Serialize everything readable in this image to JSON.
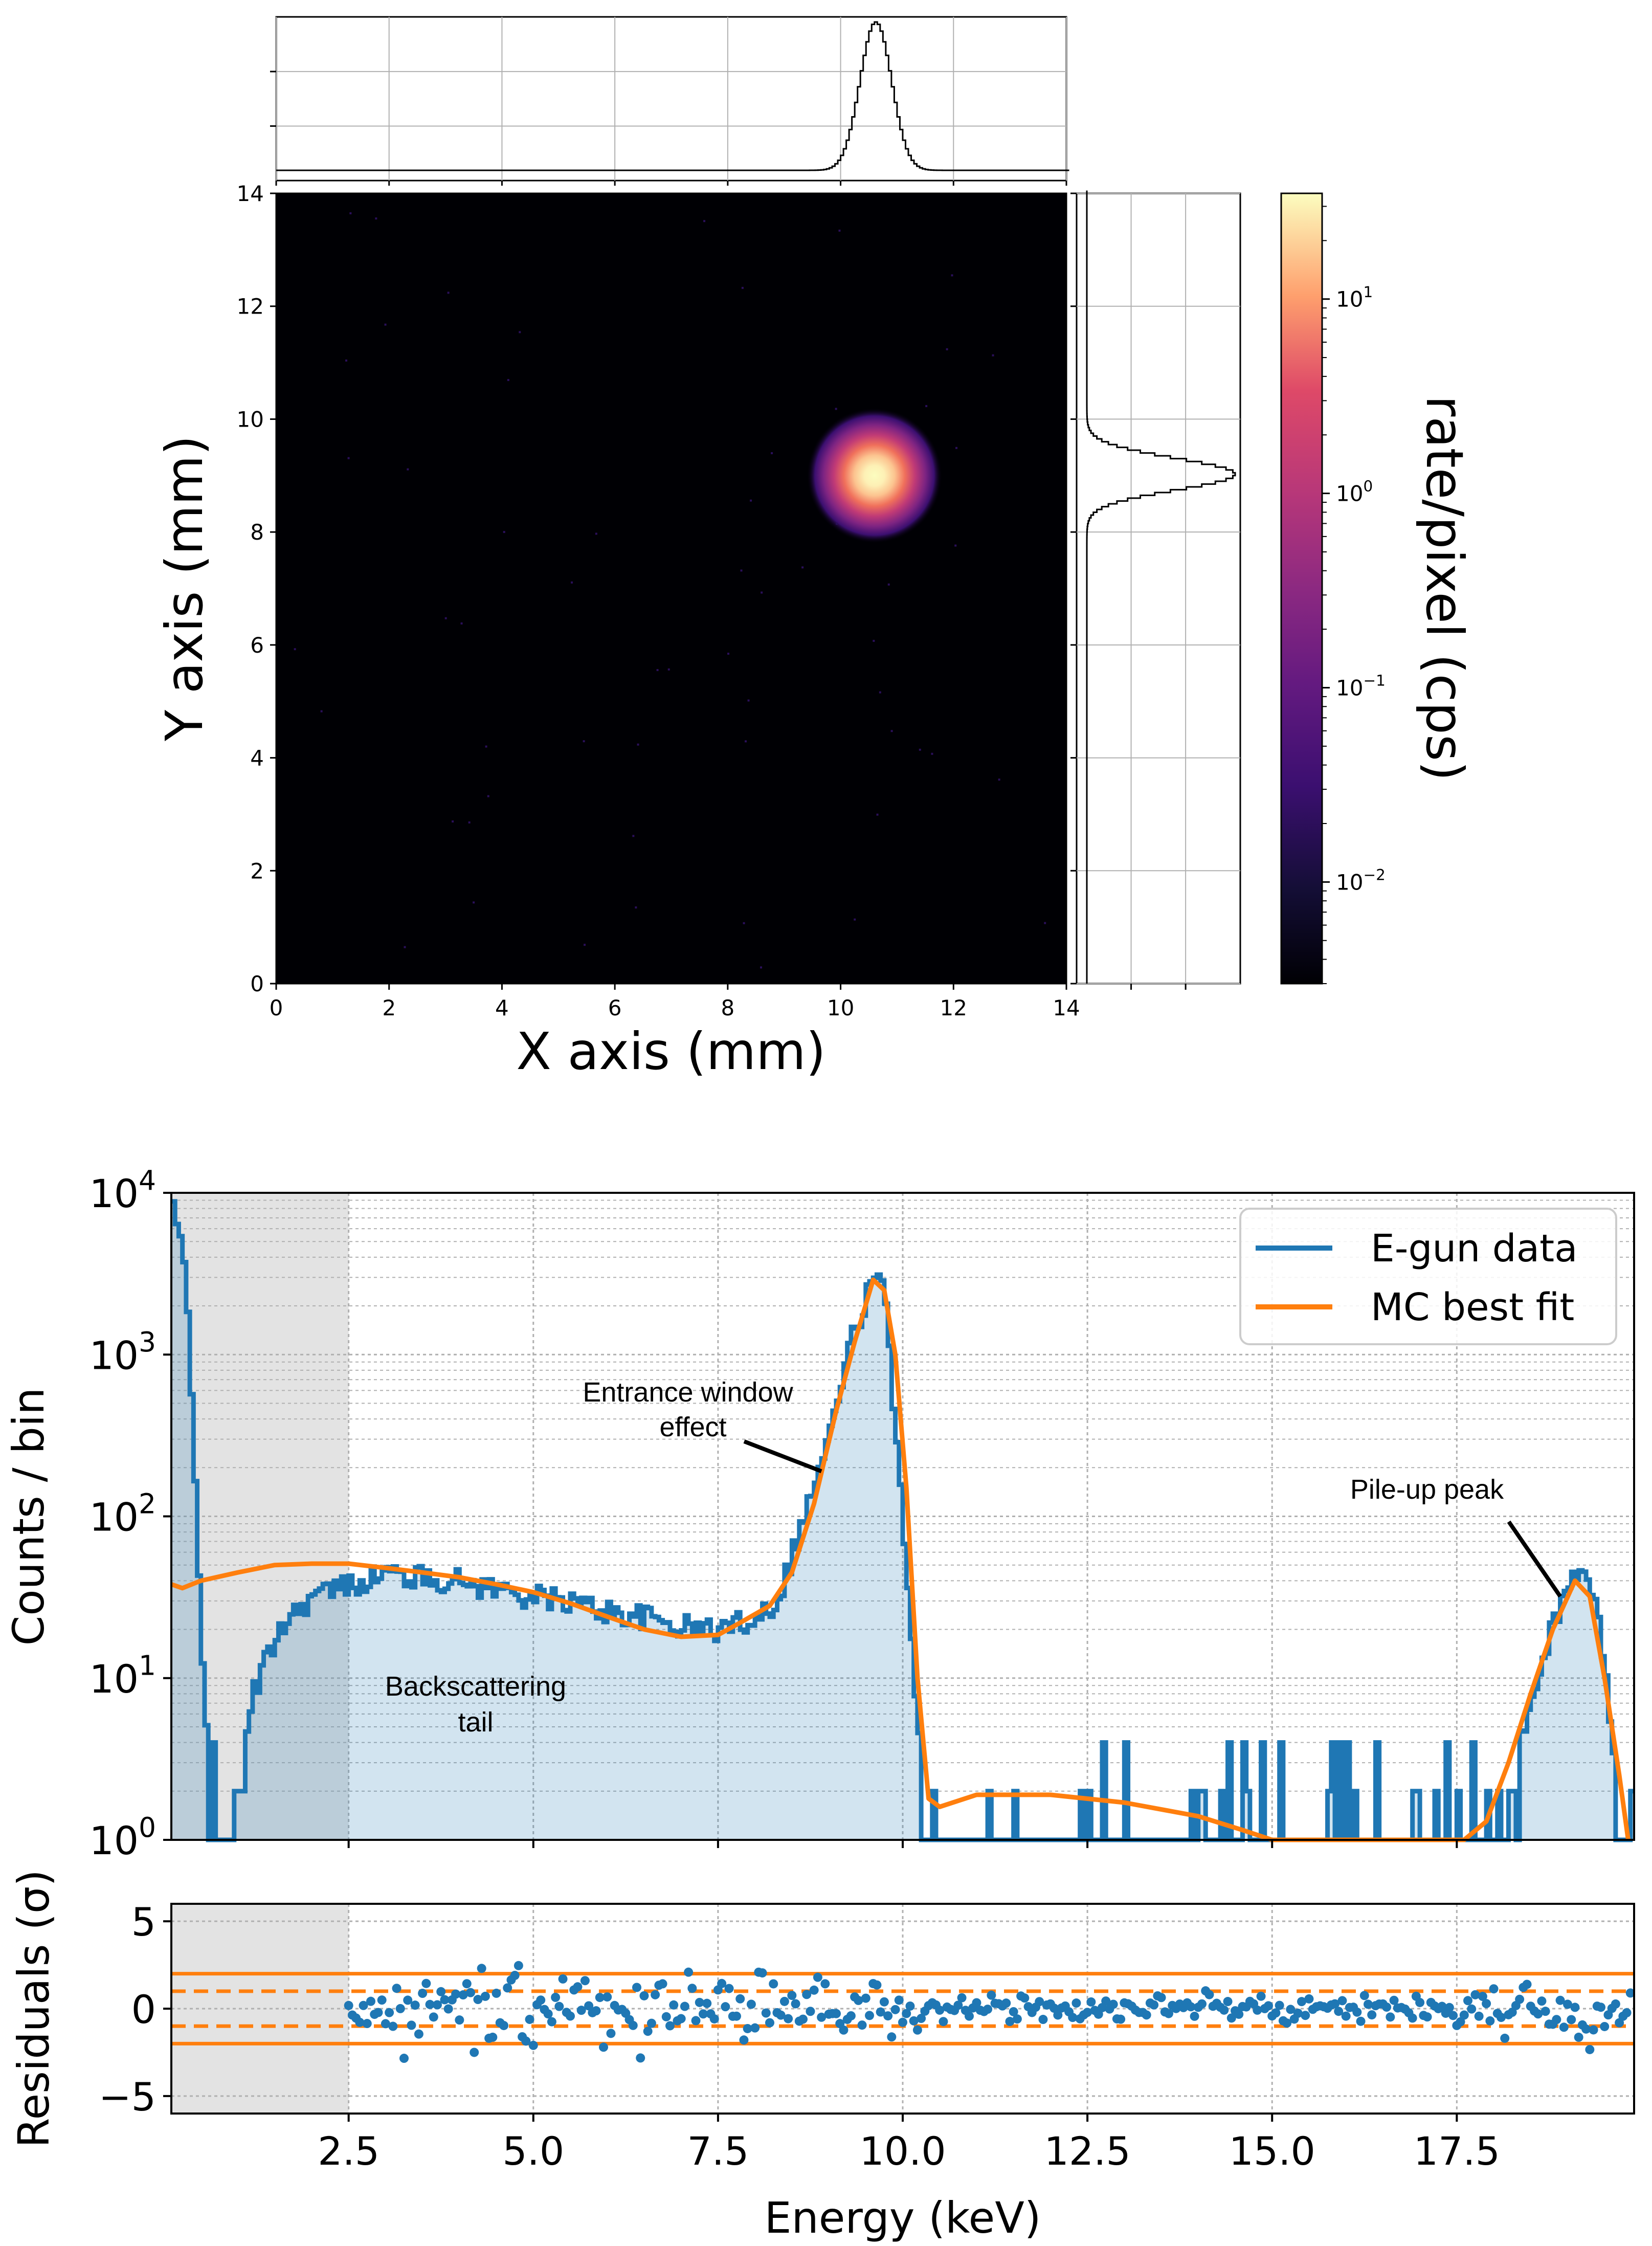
{
  "chart_data": [
    {
      "type": "heatmap",
      "title": "",
      "xlabel": "X axis (mm)",
      "ylabel": "Y axis (mm)",
      "xlim": [
        0,
        14
      ],
      "ylim": [
        0,
        14
      ],
      "xticks": [
        "0",
        "2",
        "4",
        "6",
        "8",
        "10",
        "12",
        "14"
      ],
      "yticks": [
        "0",
        "2",
        "4",
        "6",
        "8",
        "10",
        "12",
        "14"
      ],
      "spot_center_mm": [
        10.6,
        9.0
      ],
      "spot_sigma_mm": 0.3,
      "colorbar": {
        "label": "rate/pixel (cps)",
        "scale": "log",
        "range": [
          0.003,
          35
        ],
        "colormap": "magma",
        "ticks": [
          {
            "value": 10,
            "base": "10",
            "exp": "1"
          },
          {
            "value": 1,
            "base": "10",
            "exp": "0"
          },
          {
            "value": 0.1,
            "base": "10",
            "exp": "−1"
          },
          {
            "value": 0.01,
            "base": "10",
            "exp": "−2"
          }
        ]
      },
      "x_projection": {
        "peak_mm": 10.6,
        "sigma_mm": 0.28
      },
      "y_projection": {
        "peak_mm": 9.0,
        "sigma_mm": 0.28
      }
    },
    {
      "type": "line",
      "xlabel": "",
      "ylabel": "Counts / bin",
      "yscale": "log",
      "xlim": [
        0.1,
        19.9
      ],
      "ylim": [
        1,
        10000
      ],
      "yticks": [
        {
          "value": 1,
          "base": "10",
          "exp": "0"
        },
        {
          "value": 10,
          "base": "10",
          "exp": "1"
        },
        {
          "value": 100,
          "base": "10",
          "exp": "2"
        },
        {
          "value": 1000,
          "base": "10",
          "exp": "3"
        },
        {
          "value": 10000,
          "base": "10",
          "exp": "4"
        }
      ],
      "shaded_region_keV": [
        0,
        2.5
      ],
      "legend": {
        "position": "top-right",
        "entries": [
          "E-gun data",
          "MC best fit"
        ]
      },
      "annotations": {
        "entrance": {
          "lines": [
            "Entrance window",
            "effect"
          ],
          "target": [
            8.9,
            190
          ]
        },
        "backscatter": {
          "lines": [
            "Backscattering",
            "tail"
          ]
        },
        "pileup": {
          "lines": [
            "Pile-up peak"
          ],
          "target": [
            18.9,
            32
          ]
        }
      },
      "series": [
        {
          "name": "E-gun data",
          "color": "#1f77b4",
          "bin_width_keV": 0.05,
          "key_points": [
            [
              0.1,
              10000
            ],
            [
              0.3,
              3000
            ],
            [
              0.4,
              300
            ],
            [
              0.55,
              8
            ],
            [
              0.7,
              1
            ],
            [
              1.0,
              2
            ],
            [
              1.2,
              8
            ],
            [
              1.6,
              22
            ],
            [
              2.0,
              32
            ],
            [
              2.5,
              38
            ],
            [
              3.0,
              45
            ],
            [
              3.5,
              42
            ],
            [
              4.0,
              40
            ],
            [
              4.5,
              36
            ],
            [
              5.0,
              32
            ],
            [
              5.5,
              30
            ],
            [
              6.0,
              26
            ],
            [
              6.5,
              24
            ],
            [
              7.0,
              21
            ],
            [
              7.5,
              20
            ],
            [
              8.0,
              24
            ],
            [
              8.3,
              30
            ],
            [
              8.6,
              80
            ],
            [
              9.0,
              300
            ],
            [
              9.3,
              1200
            ],
            [
              9.6,
              3000
            ],
            [
              9.75,
              2500
            ],
            [
              10.0,
              120
            ],
            [
              10.2,
              5
            ],
            [
              10.4,
              1
            ],
            [
              11.0,
              3
            ],
            [
              12.0,
              2
            ],
            [
              13.0,
              2
            ],
            [
              14.0,
              1.5
            ],
            [
              15.0,
              1.5
            ],
            [
              16.0,
              1.5
            ],
            [
              17.0,
              1.5
            ],
            [
              17.8,
              1.2
            ],
            [
              18.3,
              3
            ],
            [
              18.7,
              15
            ],
            [
              19.0,
              40
            ],
            [
              19.2,
              45
            ],
            [
              19.4,
              25
            ],
            [
              19.6,
              5
            ],
            [
              19.8,
              1
            ]
          ]
        },
        {
          "name": "MC best fit",
          "color": "#ff7f0e",
          "points": [
            [
              0.1,
              38
            ],
            [
              0.25,
              36
            ],
            [
              0.5,
              40
            ],
            [
              1.0,
              45
            ],
            [
              1.5,
              50
            ],
            [
              2.0,
              51
            ],
            [
              2.5,
              51
            ],
            [
              3.0,
              48
            ],
            [
              3.5,
              45
            ],
            [
              4.0,
              42
            ],
            [
              4.5,
              38
            ],
            [
              5.0,
              34
            ],
            [
              5.5,
              29
            ],
            [
              6.0,
              24
            ],
            [
              6.5,
              20
            ],
            [
              7.0,
              18
            ],
            [
              7.5,
              18.5
            ],
            [
              7.8,
              22
            ],
            [
              8.2,
              28
            ],
            [
              8.5,
              45
            ],
            [
              8.8,
              120
            ],
            [
              9.1,
              450
            ],
            [
              9.35,
              1200
            ],
            [
              9.6,
              2900
            ],
            [
              9.75,
              2500
            ],
            [
              9.9,
              1000
            ],
            [
              10.05,
              150
            ],
            [
              10.2,
              10
            ],
            [
              10.35,
              1.8
            ],
            [
              10.5,
              1.6
            ],
            [
              11.0,
              1.9
            ],
            [
              12.0,
              1.9
            ],
            [
              13.0,
              1.7
            ],
            [
              14.0,
              1.4
            ],
            [
              14.6,
              1.15
            ],
            [
              15.0,
              1.0
            ],
            [
              17.6,
              1.0
            ],
            [
              17.9,
              1.3
            ],
            [
              18.2,
              3
            ],
            [
              18.5,
              8
            ],
            [
              18.8,
              20
            ],
            [
              19.1,
              40
            ],
            [
              19.3,
              32
            ],
            [
              19.5,
              10
            ],
            [
              19.7,
              2.5
            ],
            [
              19.82,
              1.0
            ]
          ]
        }
      ]
    },
    {
      "type": "scatter",
      "xlabel": "Energy (keV)",
      "ylabel": "Residuals (σ)",
      "xlim": [
        0.1,
        19.9
      ],
      "ylim": [
        -6,
        6
      ],
      "xticks": [
        "2.5",
        "5.0",
        "7.5",
        "10.0",
        "12.5",
        "15.0",
        "17.5"
      ],
      "yticks": [
        "−5",
        "0",
        "5"
      ],
      "hlines_solid": [
        2,
        -2
      ],
      "hlines_dashed": [
        1,
        -1
      ],
      "shaded_region_keV": [
        0,
        2.5
      ],
      "x_range_keV": [
        2.5,
        19.9
      ],
      "point_spacing_keV": 0.05,
      "point_color": "#1f77b4"
    }
  ]
}
